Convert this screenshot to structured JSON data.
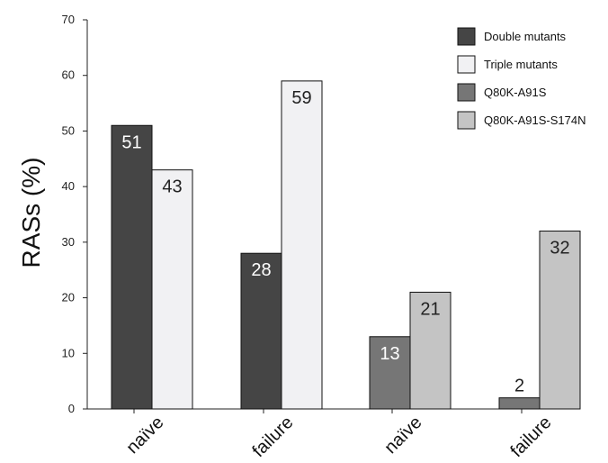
{
  "chart_data": {
    "type": "bar",
    "ylabel": "RASs (%)",
    "xlabel": "",
    "ylim": [
      0,
      70
    ],
    "yticks": [
      0,
      10,
      20,
      30,
      40,
      50,
      60,
      70
    ],
    "grid": false,
    "legend_position": "top-right",
    "categories": [
      "naïve",
      "failure",
      "naïve",
      "failure"
    ],
    "series": [
      {
        "name": "Double mutants",
        "color": "#454545",
        "label_color": "#ffffff",
        "values": [
          51,
          28,
          null,
          null
        ]
      },
      {
        "name": "Triple mutants",
        "color": "#f1f1f3",
        "label_color": "#222222",
        "values": [
          43,
          59,
          null,
          null
        ]
      },
      {
        "name": "Q80K-A91S",
        "color": "#767676",
        "label_color": "#ffffff",
        "values": [
          null,
          null,
          13,
          2
        ]
      },
      {
        "name": "Q80K-A91S-S174N",
        "color": "#c4c4c4",
        "label_color": "#222222",
        "values": [
          null,
          null,
          21,
          32
        ]
      }
    ]
  }
}
